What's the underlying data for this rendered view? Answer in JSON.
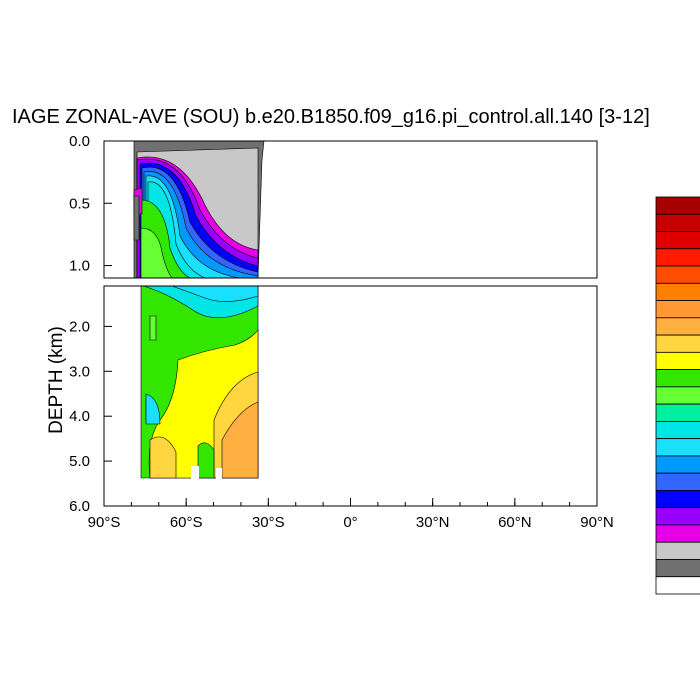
{
  "chart_data": {
    "type": "heatmap",
    "title": "IAGE ZONAL-AVE (SOU) b.e20.B1850.f09_g16.pi_control.all.140 [3-12]",
    "ylabel": "DEPTH (km)",
    "xlabel": "",
    "x_range": [
      -90,
      90
    ],
    "x_ticks": [
      "90°S",
      "60°S",
      "30°S",
      "0°",
      "30°N",
      "60°N",
      "90°N"
    ],
    "y_ticks_upper": [
      "0.0",
      "0.5",
      "1.0"
    ],
    "y_ticks_lower": [
      "2.0",
      "3.0",
      "4.0",
      "5.0",
      "6.0"
    ],
    "upper_panel_ylim": [
      0,
      1.1
    ],
    "lower_panel_ylim": [
      1.1,
      6.0
    ],
    "data_extent_lat": [
      -78,
      -33
    ],
    "colorbar_colors": [
      "#a80000",
      "#c40000",
      "#e00000",
      "#ff1a00",
      "#ff4d00",
      "#ff8000",
      "#ff9933",
      "#ffb040",
      "#ffd640",
      "#ffff00",
      "#33e600",
      "#66ff33",
      "#00f0a0",
      "#00e6e6",
      "#1ae0ff",
      "#0099ff",
      "#3366ff",
      "#0000ff",
      "#9900ff",
      "#e600e6",
      "#c8c8c8",
      "#707070",
      "#ffffff"
    ],
    "field_layers": [
      {
        "color": "#33e600"
      },
      {
        "color": "#ffff00"
      },
      {
        "color": "#ffd640"
      },
      {
        "color": "#ffb040"
      },
      {
        "color": "#66ff33"
      },
      {
        "color": "#00e6e6"
      },
      {
        "color": "#1ae0ff"
      },
      {
        "color": "#0099ff"
      },
      {
        "color": "#3366ff"
      },
      {
        "color": "#0000ff"
      },
      {
        "color": "#9900ff"
      },
      {
        "color": "#e600e6"
      },
      {
        "color": "#c8c8c8"
      },
      {
        "color": "#707070"
      }
    ]
  }
}
